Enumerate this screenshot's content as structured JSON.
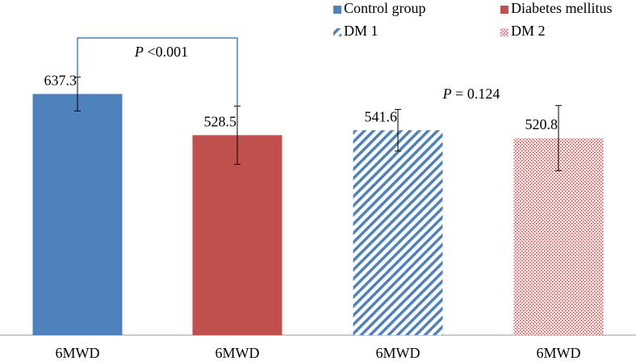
{
  "chart_data": {
    "type": "bar",
    "categories": [
      "6MWD",
      "6MWD",
      "6MWD",
      "6MWD"
    ],
    "values": [
      637.3,
      528.5,
      541.6,
      520.8
    ],
    "errors": [
      45,
      77,
      55,
      86
    ],
    "bar_names": [
      "Control group",
      "Diabetes mellitus",
      "DM 1",
      "DM 2"
    ],
    "colors": [
      "#4f81bd",
      "#c0504d",
      "#4f81bd",
      "#c0504d"
    ],
    "patterns": [
      "solid",
      "solid",
      "diagonal",
      "dots"
    ],
    "ylim": [
      0,
      700
    ],
    "annotations": [
      {
        "symbol": "P",
        "text": " <0.001"
      },
      {
        "symbol": "P",
        "text": " = 0.124"
      }
    ]
  }
}
